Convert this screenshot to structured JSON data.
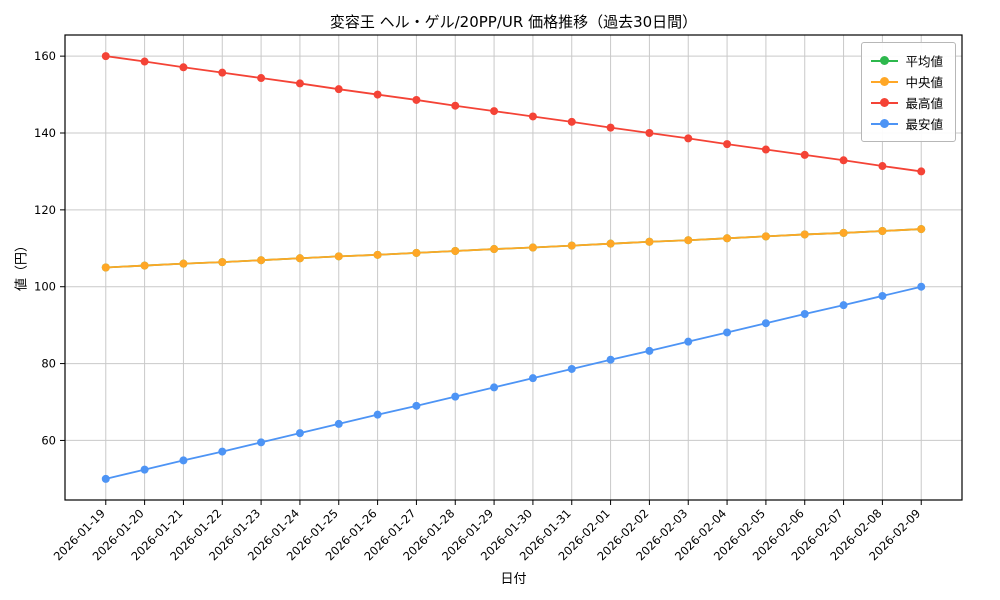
{
  "chart_data": {
    "type": "line",
    "title": "変容王 ヘル・ゲル/20PP/UR 価格推移（過去30日間）",
    "xlabel": "日付",
    "ylabel": "値（円）",
    "ylim": [
      44.5,
      165.5
    ],
    "yticks": [
      60,
      80,
      100,
      120,
      140,
      160
    ],
    "grid": true,
    "grid_color": "#c9c9c9",
    "axis_color": "#000000",
    "legend_position": "top-right",
    "categories": [
      "2026-01-19",
      "2026-01-20",
      "2026-01-21",
      "2026-01-22",
      "2026-01-23",
      "2026-01-24",
      "2026-01-25",
      "2026-01-26",
      "2026-01-27",
      "2026-01-28",
      "2026-01-29",
      "2026-01-30",
      "2026-01-31",
      "2026-02-01",
      "2026-02-02",
      "2026-02-03",
      "2026-02-04",
      "2026-02-05",
      "2026-02-06",
      "2026-02-07",
      "2026-02-08",
      "2026-02-09"
    ],
    "series": [
      {
        "key": "mean",
        "name": "平均値",
        "color": "#2db84d",
        "values": [
          105,
          105.5,
          106,
          106.4,
          106.9,
          107.4,
          107.9,
          108.3,
          108.8,
          109.3,
          109.8,
          110.2,
          110.7,
          111.2,
          111.7,
          112.1,
          112.6,
          113.1,
          113.6,
          114,
          114.5,
          115
        ]
      },
      {
        "key": "median",
        "name": "中央値",
        "color": "#ffa726",
        "values": [
          105,
          105.5,
          106,
          106.4,
          106.9,
          107.4,
          107.9,
          108.3,
          108.8,
          109.3,
          109.8,
          110.2,
          110.7,
          111.2,
          111.7,
          112.1,
          112.6,
          113.1,
          113.6,
          114,
          114.5,
          115
        ]
      },
      {
        "key": "max",
        "name": "最高値",
        "color": "#f44336",
        "values": [
          160,
          158.6,
          157.1,
          155.7,
          154.3,
          152.9,
          151.4,
          150,
          148.6,
          147.1,
          145.7,
          144.3,
          142.9,
          141.4,
          140,
          138.6,
          137.1,
          135.7,
          134.3,
          132.9,
          131.4,
          130
        ]
      },
      {
        "key": "min",
        "name": "最安値",
        "color": "#4d94f5",
        "values": [
          50,
          52.4,
          54.8,
          57.1,
          59.5,
          61.9,
          64.3,
          66.7,
          69,
          71.4,
          73.8,
          76.2,
          78.6,
          81,
          83.3,
          85.7,
          88.1,
          90.5,
          92.9,
          95.2,
          97.6,
          100
        ]
      }
    ]
  }
}
